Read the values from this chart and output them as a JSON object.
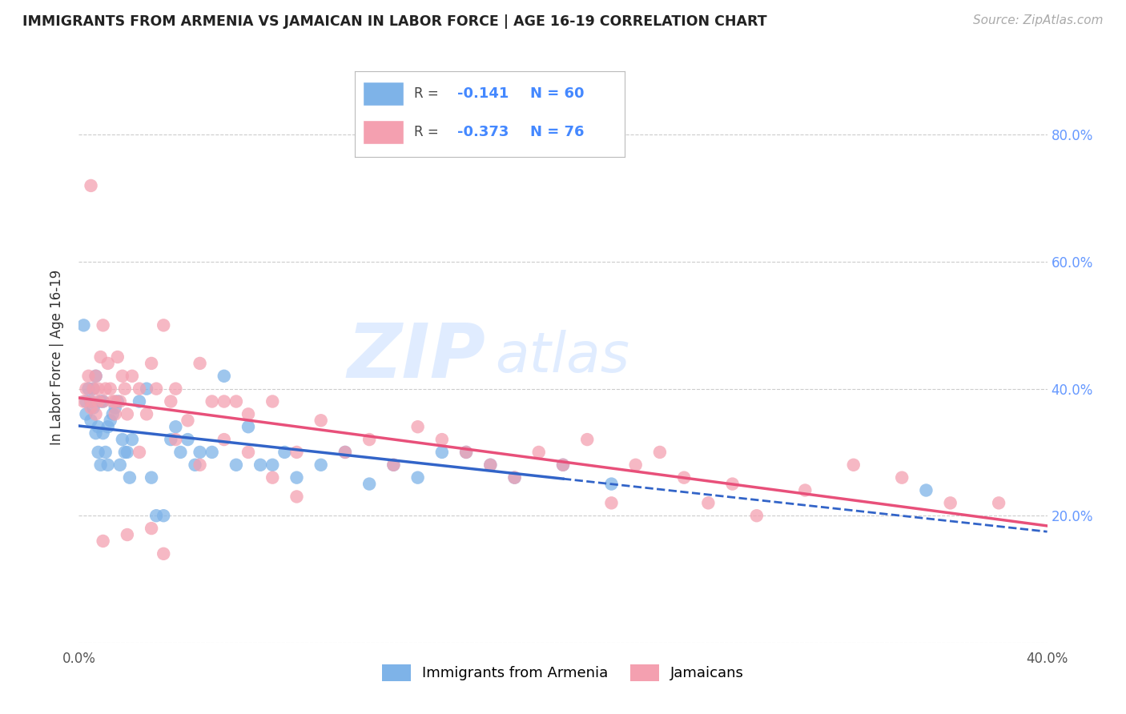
{
  "title": "IMMIGRANTS FROM ARMENIA VS JAMAICAN IN LABOR FORCE | AGE 16-19 CORRELATION CHART",
  "source_text": "Source: ZipAtlas.com",
  "ylabel": "In Labor Force | Age 16-19",
  "xlim": [
    0.0,
    0.4
  ],
  "ylim": [
    0.0,
    0.9
  ],
  "ytick_values": [
    0.0,
    0.2,
    0.4,
    0.6,
    0.8
  ],
  "xtick_labels": [
    "0.0%",
    "",
    "",
    "",
    "",
    "",
    "",
    "",
    "40.0%"
  ],
  "xtick_values": [
    0.0,
    0.05,
    0.1,
    0.15,
    0.2,
    0.25,
    0.3,
    0.35,
    0.4
  ],
  "right_ytick_labels": [
    "20.0%",
    "40.0%",
    "60.0%",
    "80.0%"
  ],
  "right_ytick_values": [
    0.2,
    0.4,
    0.6,
    0.8
  ],
  "legend_r_armenia": "-0.141",
  "legend_n_armenia": "60",
  "legend_r_jamaican": "-0.373",
  "legend_n_jamaican": "76",
  "color_armenia": "#7EB3E8",
  "color_jamaican": "#F4A0B0",
  "color_line_armenia": "#3264C8",
  "color_line_jamaican": "#E8507A",
  "armenia_x": [
    0.002,
    0.003,
    0.003,
    0.004,
    0.005,
    0.005,
    0.006,
    0.006,
    0.007,
    0.007,
    0.008,
    0.008,
    0.009,
    0.009,
    0.01,
    0.01,
    0.011,
    0.012,
    0.012,
    0.013,
    0.014,
    0.015,
    0.016,
    0.017,
    0.018,
    0.019,
    0.02,
    0.021,
    0.022,
    0.025,
    0.028,
    0.03,
    0.032,
    0.035,
    0.038,
    0.04,
    0.042,
    0.045,
    0.048,
    0.05,
    0.055,
    0.06,
    0.065,
    0.07,
    0.075,
    0.08,
    0.085,
    0.09,
    0.1,
    0.11,
    0.12,
    0.13,
    0.14,
    0.15,
    0.16,
    0.17,
    0.18,
    0.2,
    0.22,
    0.35
  ],
  "armenia_y": [
    0.5,
    0.38,
    0.36,
    0.4,
    0.38,
    0.35,
    0.37,
    0.4,
    0.33,
    0.42,
    0.3,
    0.34,
    0.38,
    0.28,
    0.38,
    0.33,
    0.3,
    0.28,
    0.34,
    0.35,
    0.36,
    0.37,
    0.38,
    0.28,
    0.32,
    0.3,
    0.3,
    0.26,
    0.32,
    0.38,
    0.4,
    0.26,
    0.2,
    0.2,
    0.32,
    0.34,
    0.3,
    0.32,
    0.28,
    0.3,
    0.3,
    0.42,
    0.28,
    0.34,
    0.28,
    0.28,
    0.3,
    0.26,
    0.28,
    0.3,
    0.25,
    0.28,
    0.26,
    0.3,
    0.3,
    0.28,
    0.26,
    0.28,
    0.25,
    0.24
  ],
  "jamaican_x": [
    0.002,
    0.003,
    0.004,
    0.005,
    0.005,
    0.006,
    0.007,
    0.007,
    0.008,
    0.008,
    0.009,
    0.01,
    0.01,
    0.011,
    0.012,
    0.013,
    0.014,
    0.015,
    0.016,
    0.017,
    0.018,
    0.019,
    0.02,
    0.022,
    0.025,
    0.028,
    0.03,
    0.032,
    0.035,
    0.038,
    0.04,
    0.045,
    0.05,
    0.055,
    0.06,
    0.065,
    0.07,
    0.08,
    0.09,
    0.1,
    0.11,
    0.12,
    0.13,
    0.14,
    0.15,
    0.16,
    0.17,
    0.18,
    0.19,
    0.2,
    0.21,
    0.22,
    0.23,
    0.24,
    0.25,
    0.26,
    0.27,
    0.28,
    0.3,
    0.32,
    0.34,
    0.36,
    0.38,
    0.005,
    0.01,
    0.015,
    0.02,
    0.025,
    0.03,
    0.035,
    0.04,
    0.05,
    0.06,
    0.07,
    0.08,
    0.09
  ],
  "jamaican_y": [
    0.38,
    0.4,
    0.42,
    0.38,
    0.37,
    0.4,
    0.42,
    0.36,
    0.38,
    0.4,
    0.45,
    0.5,
    0.38,
    0.4,
    0.44,
    0.4,
    0.38,
    0.36,
    0.45,
    0.38,
    0.42,
    0.4,
    0.36,
    0.42,
    0.4,
    0.36,
    0.44,
    0.4,
    0.5,
    0.38,
    0.4,
    0.35,
    0.44,
    0.38,
    0.38,
    0.38,
    0.36,
    0.38,
    0.3,
    0.35,
    0.3,
    0.32,
    0.28,
    0.34,
    0.32,
    0.3,
    0.28,
    0.26,
    0.3,
    0.28,
    0.32,
    0.22,
    0.28,
    0.3,
    0.26,
    0.22,
    0.25,
    0.2,
    0.24,
    0.28,
    0.26,
    0.22,
    0.22,
    0.72,
    0.16,
    0.38,
    0.17,
    0.3,
    0.18,
    0.14,
    0.32,
    0.28,
    0.32,
    0.3,
    0.26,
    0.23
  ]
}
